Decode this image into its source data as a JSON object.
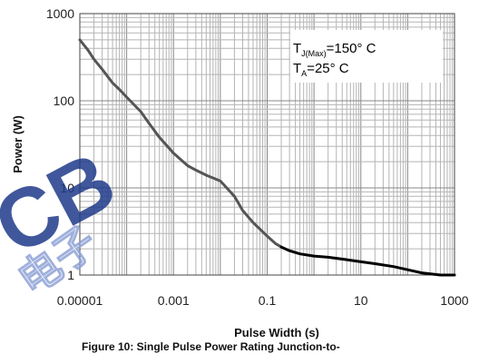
{
  "chart_data": {
    "type": "line",
    "title": "",
    "xlabel": "Pulse Width (s)",
    "ylabel": "Power (W)",
    "xscale": "log",
    "yscale": "log",
    "xlim": [
      1e-05,
      1000
    ],
    "ylim": [
      1,
      1000
    ],
    "x_ticks": [
      "0.00001",
      "0.001",
      "0.1",
      "10",
      "1000"
    ],
    "y_ticks": [
      "1000",
      "100",
      "10",
      "1"
    ],
    "grid": true,
    "legend": "none",
    "annotations": {
      "line1_main": "T",
      "line1_sub": "J(Max)",
      "line1_rest": "=150° C",
      "line2_main": "T",
      "line2_sub": "A",
      "line2_rest": "=25° C"
    },
    "series": [
      {
        "color": "#555555",
        "x": [
          1e-05,
          1.5e-05,
          2e-05,
          3e-05,
          5e-05,
          7e-05,
          0.0001,
          0.0002,
          0.0003,
          0.0005,
          0.001,
          0.002,
          0.003,
          0.005,
          0.01,
          0.02,
          0.03,
          0.05,
          0.1,
          0.15,
          0.2
        ],
        "y": [
          500,
          380,
          300,
          230,
          160,
          135,
          110,
          75,
          55,
          38,
          25,
          18,
          16,
          14,
          12,
          8,
          5.5,
          4,
          2.8,
          2.3,
          2.1
        ]
      },
      {
        "color": "#000000",
        "x": [
          0.2,
          0.3,
          0.5,
          1,
          2,
          5,
          10,
          20,
          50,
          100,
          200,
          500,
          600,
          1000
        ],
        "y": [
          2.1,
          1.9,
          1.75,
          1.65,
          1.6,
          1.5,
          1.42,
          1.35,
          1.25,
          1.15,
          1.06,
          1.0,
          1.0,
          1.0
        ]
      }
    ]
  },
  "caption": "Figure 10: Single Pulse Power Rating Junction-to-",
  "watermark": {
    "letters": "CB",
    "chars": "电子",
    "color": "#1f3a8a"
  }
}
